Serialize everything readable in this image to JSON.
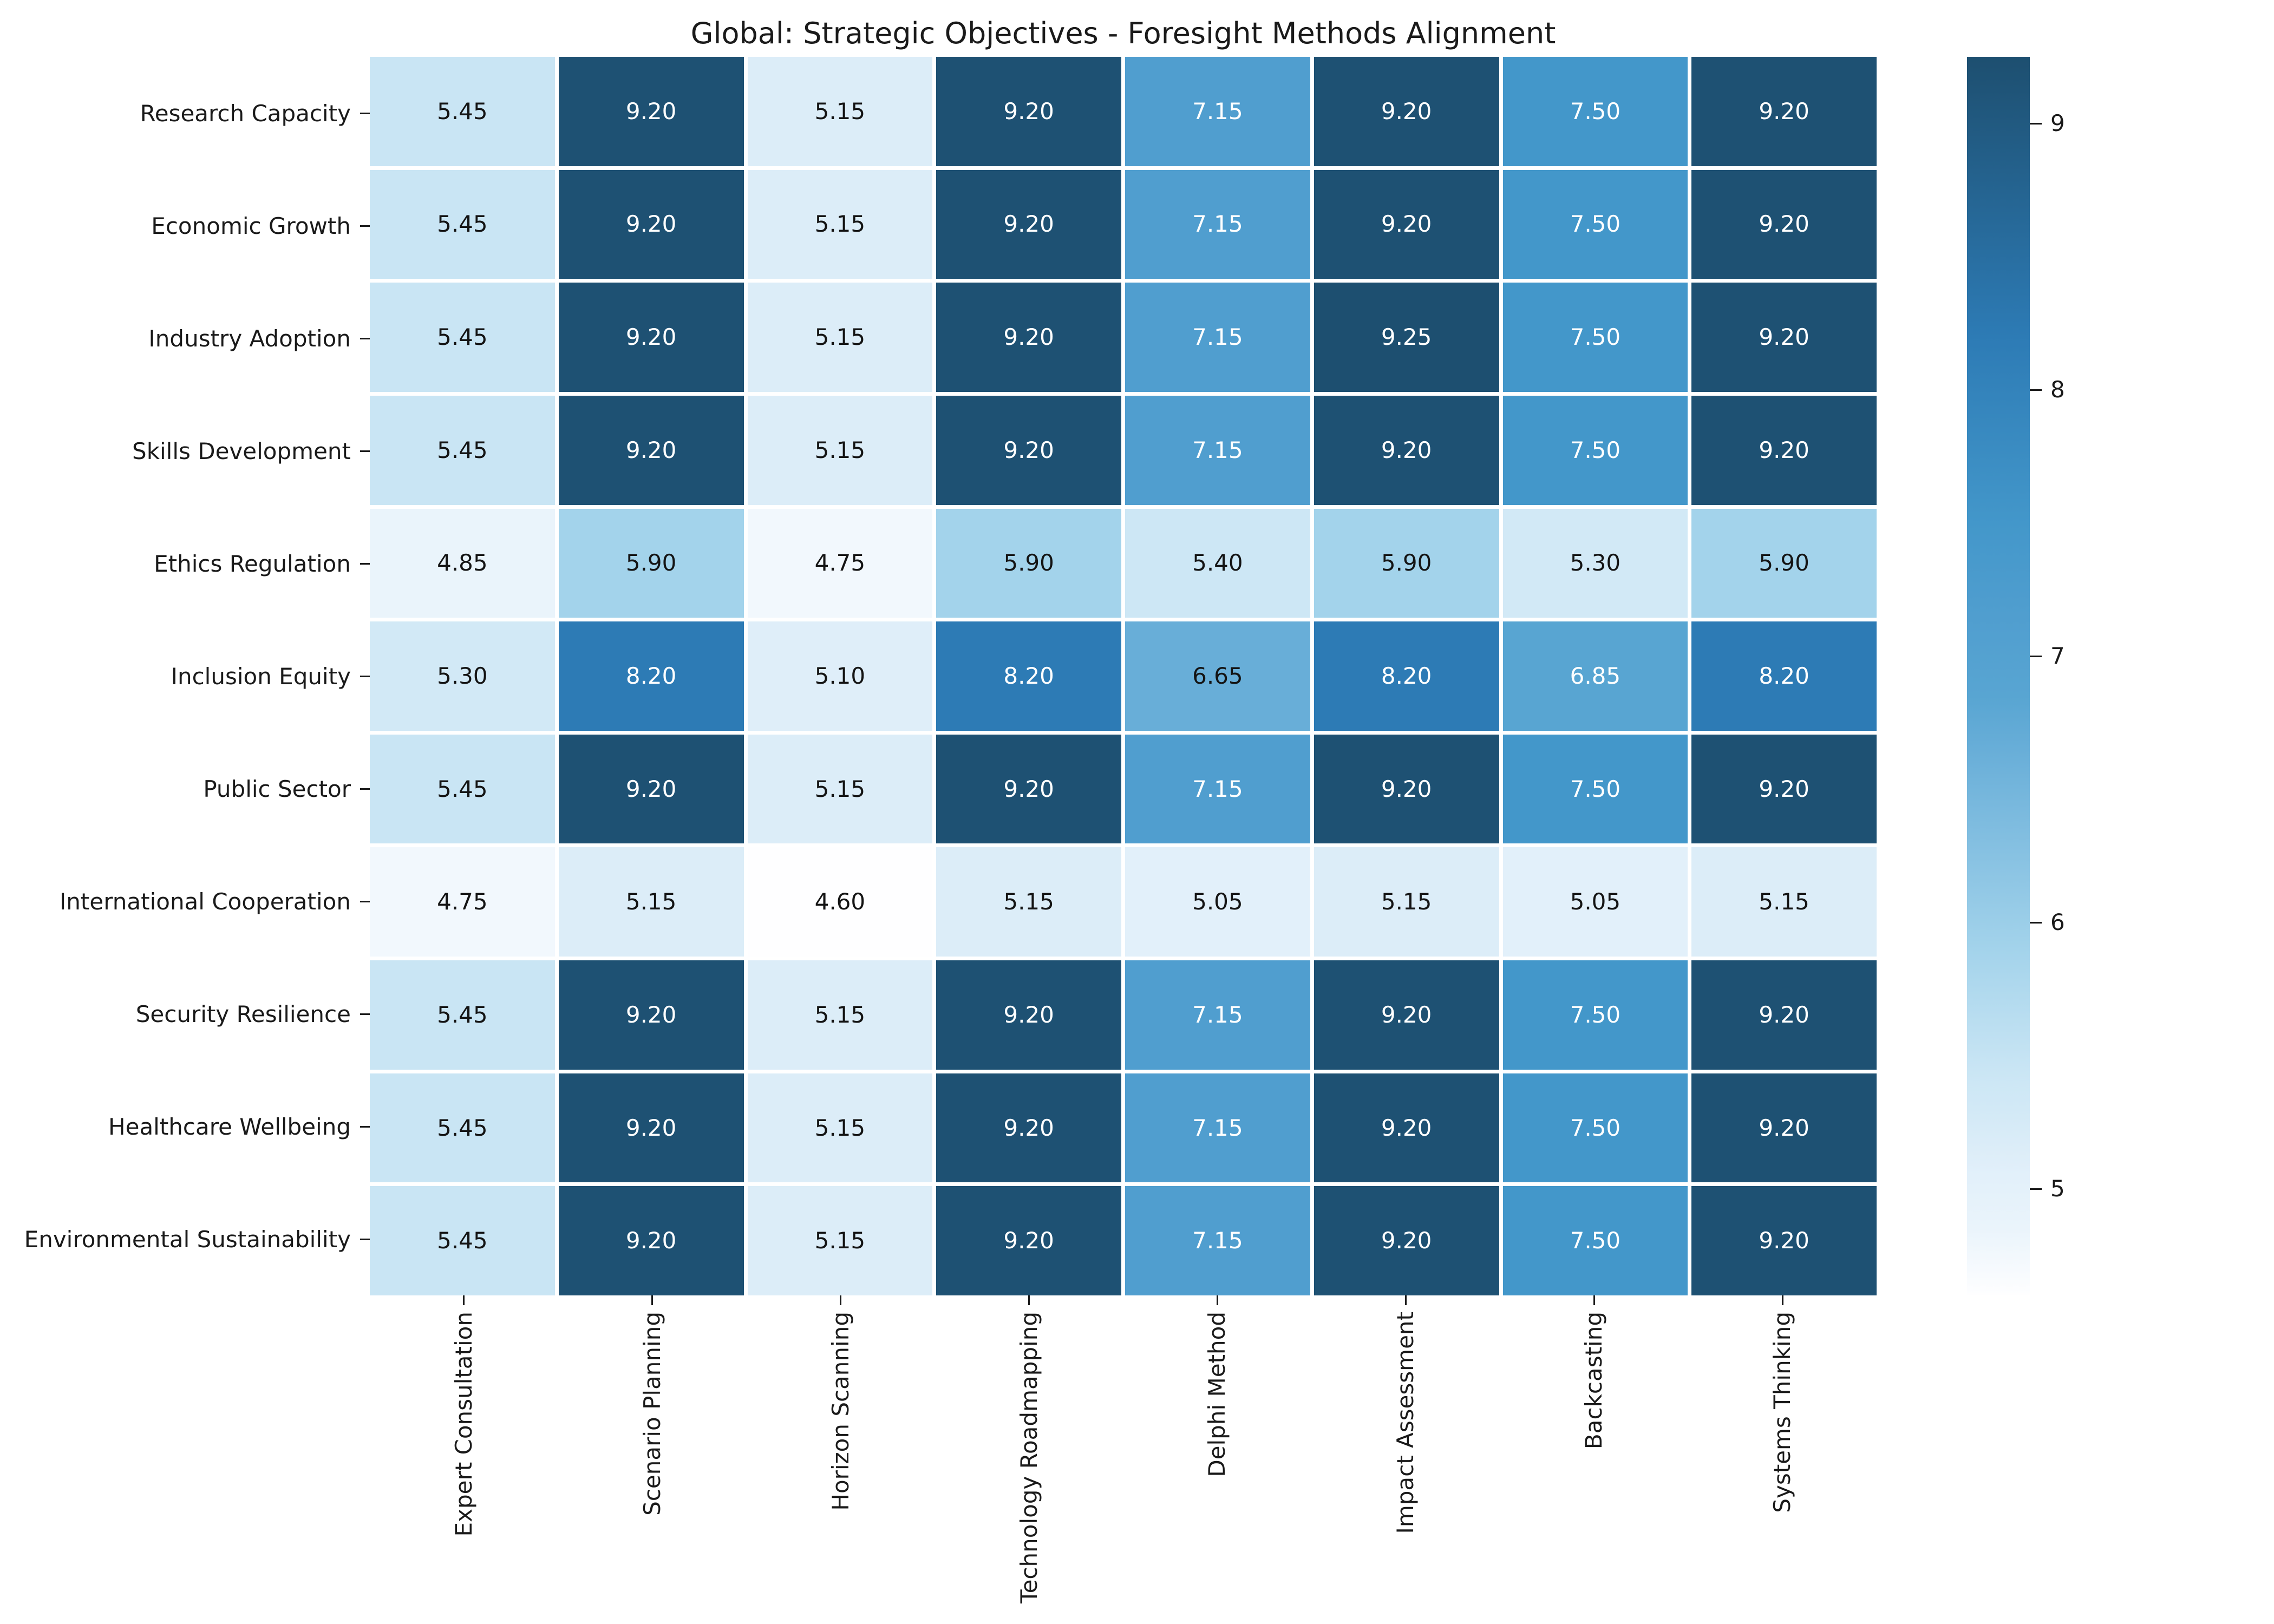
{
  "chart_data": {
    "type": "heatmap",
    "title": "Global: Strategic Objectives - Foresight Methods Alignment",
    "rows": [
      "Research Capacity",
      "Economic Growth",
      "Industry Adoption",
      "Skills Development",
      "Ethics Regulation",
      "Inclusion Equity",
      "Public Sector",
      "International Cooperation",
      "Security Resilience",
      "Healthcare Wellbeing",
      "Environmental Sustainability"
    ],
    "columns": [
      "Expert Consultation",
      "Scenario Planning",
      "Horizon Scanning",
      "Technology Roadmapping",
      "Delphi Method",
      "Impact Assessment",
      "Backcasting",
      "Systems Thinking"
    ],
    "values": [
      [
        5.45,
        9.2,
        5.15,
        9.2,
        7.15,
        9.2,
        7.5,
        9.2
      ],
      [
        5.45,
        9.2,
        5.15,
        9.2,
        7.15,
        9.2,
        7.5,
        9.2
      ],
      [
        5.45,
        9.2,
        5.15,
        9.2,
        7.15,
        9.25,
        7.5,
        9.2
      ],
      [
        5.45,
        9.2,
        5.15,
        9.2,
        7.15,
        9.2,
        7.5,
        9.2
      ],
      [
        4.85,
        5.9,
        4.75,
        5.9,
        5.4,
        5.9,
        5.3,
        5.9
      ],
      [
        5.3,
        8.2,
        5.1,
        8.2,
        6.65,
        8.2,
        6.85,
        8.2
      ],
      [
        5.45,
        9.2,
        5.15,
        9.2,
        7.15,
        9.2,
        7.5,
        9.2
      ],
      [
        4.75,
        5.15,
        4.6,
        5.15,
        5.05,
        5.15,
        5.05,
        5.15
      ],
      [
        5.45,
        9.2,
        5.15,
        9.2,
        7.15,
        9.2,
        7.5,
        9.2
      ],
      [
        5.45,
        9.2,
        5.15,
        9.2,
        7.15,
        9.2,
        7.5,
        9.2
      ],
      [
        5.45,
        9.2,
        5.15,
        9.2,
        7.15,
        9.2,
        7.5,
        9.2
      ]
    ],
    "value_decimals": 2,
    "grid_on": true,
    "grid_color": "#ffffff",
    "legend_position": "right",
    "colorbar": {
      "vmin": 4.6,
      "vmax": 9.25,
      "ticks": [
        9,
        8,
        7,
        6,
        5
      ]
    },
    "color_scale": [
      {
        "v": 4.6,
        "color": "#fefeff"
      },
      {
        "v": 4.75,
        "color": "#f2f8fd"
      },
      {
        "v": 4.85,
        "color": "#eaf4fb"
      },
      {
        "v": 5.05,
        "color": "#e2f0fa"
      },
      {
        "v": 5.1,
        "color": "#dfeef9"
      },
      {
        "v": 5.15,
        "color": "#dcedf8"
      },
      {
        "v": 5.3,
        "color": "#d2e9f6"
      },
      {
        "v": 5.4,
        "color": "#cde7f5"
      },
      {
        "v": 5.45,
        "color": "#c9e5f4"
      },
      {
        "v": 5.9,
        "color": "#a3d3eb"
      },
      {
        "v": 6.65,
        "color": "#68aed8"
      },
      {
        "v": 6.85,
        "color": "#58a5d2"
      },
      {
        "v": 7.15,
        "color": "#509ecf"
      },
      {
        "v": 7.5,
        "color": "#4397ca"
      },
      {
        "v": 8.2,
        "color": "#2d7bb5"
      },
      {
        "v": 9.2,
        "color": "#1e5173"
      },
      {
        "v": 9.25,
        "color": "#1d4f70"
      }
    ],
    "text_colors": {
      "light": "#ffffff",
      "dark": "#141414",
      "light_threshold": 6.8
    }
  }
}
